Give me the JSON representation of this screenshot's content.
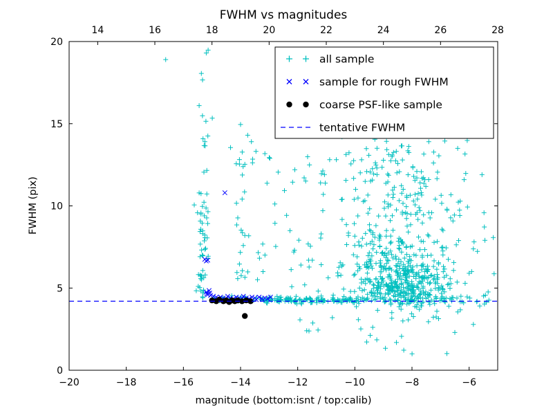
{
  "figure": {
    "title": "FWHM vs magnitudes",
    "xlabel": "magnitude (bottom:isnt / top:calib)",
    "ylabel": "FWHM (pix)"
  },
  "chart_data": {
    "type": "scatter",
    "title": "FWHM vs magnitudes",
    "xlabel": "magnitude (bottom:isnt / top:calib)",
    "ylabel": "FWHM (pix)",
    "xlim": [
      -20,
      -5
    ],
    "ylim": [
      0,
      20
    ],
    "grid": false,
    "seed": 20,
    "x_bottom_ticks": [
      -20,
      -18,
      -16,
      -14,
      -12,
      -10,
      -8,
      -6
    ],
    "x_bottom_tick_labels": [
      "−20",
      "−18",
      "−16",
      "−14",
      "−12",
      "−10",
      "−8",
      "−6"
    ],
    "x_top_ticks": [
      14,
      16,
      18,
      20,
      22,
      24,
      26,
      28
    ],
    "x_top_tick_labels": [
      "14",
      "16",
      "18",
      "20",
      "22",
      "24",
      "26",
      "28"
    ],
    "top_axis_offset": -33,
    "y_ticks": [
      0,
      5,
      10,
      15,
      20
    ],
    "y_tick_labels": [
      "0",
      "5",
      "10",
      "15",
      "20"
    ],
    "legend": {
      "position": "upper right",
      "entries": [
        {
          "label": "all sample",
          "marker": "plus",
          "color": "#00bfbf"
        },
        {
          "label": "sample for rough FWHM",
          "marker": "x",
          "color": "#0000ff"
        },
        {
          "label": "coarse PSF-like sample",
          "marker": "dot",
          "color": "#000000"
        },
        {
          "label": "tentative FWHM",
          "marker": "dashed-line",
          "color": "#0000ff"
        }
      ]
    },
    "series": [
      {
        "name": "all sample",
        "marker": "plus",
        "color": "#00bfbf",
        "clusters": [
          {
            "n": 320,
            "xd": [
              "n",
              -8.3,
              0.75
            ],
            "yd": [
              "n",
              5.1,
              0.7
            ]
          },
          {
            "n": 160,
            "xd": [
              "n",
              -8.6,
              0.95
            ],
            "yd": [
              "n",
              6.8,
              1.1
            ]
          },
          {
            "n": 90,
            "xd": [
              "n",
              -8.4,
              1.0
            ],
            "yd": [
              "n",
              9.3,
              1.5
            ]
          },
          {
            "n": 45,
            "xd": [
              "n",
              -8.7,
              1.2
            ],
            "yd": [
              "n",
              12.3,
              1.1
            ]
          },
          {
            "n": 130,
            "xd": [
              "u",
              -13.3,
              -9.9
            ],
            "yd": [
              "n",
              4.27,
              0.09
            ]
          },
          {
            "n": 60,
            "xd": [
              "u",
              -9.9,
              -6.1
            ],
            "yd": [
              "n",
              4.3,
              0.14
            ]
          },
          {
            "n": 25,
            "xd": [
              "u",
              -15.05,
              -13.3
            ],
            "yd": [
              "n",
              4.3,
              0.1
            ]
          },
          {
            "n": 10,
            "xd": [
              "u",
              -6.1,
              -5.05
            ],
            "yd": [
              "n",
              4.3,
              0.18
            ]
          },
          {
            "n": 48,
            "xd": [
              "n",
              -15.33,
              0.1
            ],
            "yd": [
              "u",
              4.3,
              10.3
            ]
          },
          {
            "n": 16,
            "xd": [
              "n",
              -15.3,
              0.12
            ],
            "yd": [
              "u",
              10.3,
              19.6
            ]
          },
          {
            "n": 26,
            "xd": [
              "n",
              -13.95,
              0.14
            ],
            "yd": [
              "u",
              4.9,
              15.1
            ]
          },
          {
            "n": 48,
            "xd": [
              "u",
              -13.6,
              -10.2
            ],
            "yd": [
              "u",
              4.8,
              13.5
            ]
          },
          {
            "n": 36,
            "xd": [
              "u",
              -9.7,
              -5.9
            ],
            "yd": [
              "u",
              10.2,
              14.6
            ]
          },
          {
            "n": 20,
            "xd": [
              "u",
              -7.0,
              -5.1
            ],
            "yd": [
              "u",
              4.5,
              10.0
            ]
          },
          {
            "n": 18,
            "xd": [
              "u",
              -9.6,
              -5.3
            ],
            "yd": [
              "u",
              0.6,
              3.8
            ]
          },
          {
            "n": 8,
            "xd": [
              "u",
              -12.8,
              -9.7
            ],
            "yd": [
              "u",
              1.8,
              3.9
            ]
          }
        ],
        "points": [
          [
            -16.62,
            18.9
          ],
          [
            -15.2,
            19.3
          ],
          [
            -15.45,
            16.1
          ],
          [
            -14.0,
            14.95
          ],
          [
            -13.75,
            14.3
          ],
          [
            -14.35,
            13.55
          ],
          [
            -12.1,
            12.2
          ],
          [
            -11.2,
            11.4
          ],
          [
            -6.4,
            13.5
          ],
          [
            -6.85,
            13.95
          ],
          [
            -5.55,
            11.9
          ],
          [
            -6.5,
            2.3
          ],
          [
            -10.45,
            14.2
          ],
          [
            -9.3,
            14.05
          ]
        ]
      },
      {
        "name": "sample for rough FWHM",
        "marker": "x",
        "color": "#0000ff",
        "points": [
          [
            -15.25,
            6.75
          ],
          [
            -15.2,
            6.65
          ],
          [
            -15.15,
            6.7
          ],
          [
            -14.55,
            10.8
          ],
          [
            -15.2,
            4.75
          ],
          [
            -15.18,
            4.65
          ],
          [
            -15.15,
            4.6
          ],
          [
            -15.1,
            4.85
          ],
          [
            -15.08,
            4.7
          ],
          [
            -15.05,
            4.55
          ],
          [
            -14.95,
            4.5
          ],
          [
            -14.85,
            4.45
          ],
          [
            -14.8,
            4.35
          ],
          [
            -14.7,
            4.45
          ],
          [
            -14.6,
            4.4
          ],
          [
            -14.5,
            4.35
          ],
          [
            -14.45,
            4.5
          ],
          [
            -14.35,
            4.4
          ],
          [
            -14.25,
            4.35
          ],
          [
            -14.15,
            4.45
          ],
          [
            -14.05,
            4.4
          ],
          [
            -13.95,
            4.35
          ],
          [
            -13.9,
            4.5
          ],
          [
            -13.8,
            4.4
          ],
          [
            -13.7,
            4.35
          ],
          [
            -13.6,
            4.45
          ],
          [
            -13.5,
            4.4
          ],
          [
            -13.45,
            4.3
          ],
          [
            -13.35,
            4.45
          ],
          [
            -13.25,
            4.35
          ],
          [
            -13.15,
            4.4
          ],
          [
            -13.05,
            4.35
          ],
          [
            -12.95,
            4.45
          ]
        ]
      },
      {
        "name": "coarse PSF-like sample",
        "marker": "dot",
        "color": "#000000",
        "points": [
          [
            -15.0,
            4.25
          ],
          [
            -14.85,
            4.2
          ],
          [
            -14.75,
            4.3
          ],
          [
            -14.6,
            4.2
          ],
          [
            -14.5,
            4.25
          ],
          [
            -14.4,
            4.15
          ],
          [
            -14.3,
            4.25
          ],
          [
            -14.2,
            4.2
          ],
          [
            -14.1,
            4.25
          ],
          [
            -13.95,
            4.2
          ],
          [
            -13.8,
            4.25
          ],
          [
            -13.65,
            4.2
          ],
          [
            -13.85,
            3.3
          ]
        ]
      },
      {
        "name": "tentative FWHM",
        "type": "hline",
        "y": 4.2,
        "color": "#0000ff",
        "linestyle": "dashed"
      }
    ]
  }
}
